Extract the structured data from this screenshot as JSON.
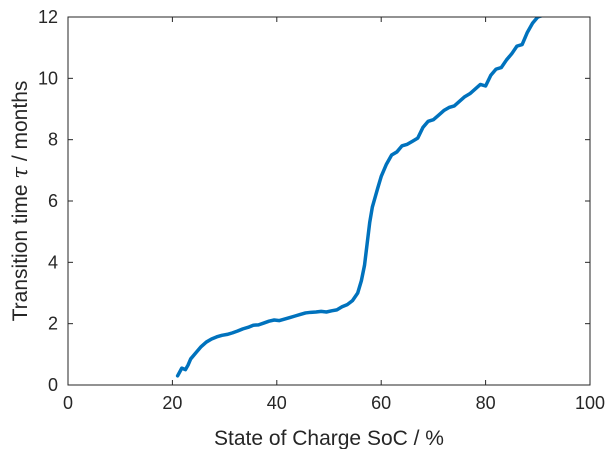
{
  "chart_data": {
    "type": "line",
    "title": "",
    "xlabel": "State of Charge SoC  /  %",
    "ylabel_parts": {
      "before": "Transition time ",
      "symbol": "τ",
      "after": "  /  months"
    },
    "xlim": [
      0,
      100
    ],
    "ylim": [
      0,
      12
    ],
    "xticks": [
      0,
      20,
      40,
      60,
      80,
      100
    ],
    "yticks": [
      0,
      2,
      4,
      6,
      8,
      10,
      12
    ],
    "xtick_labels": [
      "0",
      "20",
      "40",
      "60",
      "80",
      "100"
    ],
    "ytick_labels": [
      "0",
      "2",
      "4",
      "6",
      "8",
      "10",
      "12"
    ],
    "grid": false,
    "box": true,
    "colors": {
      "line": "#0072BD",
      "axes": "#262626"
    },
    "series": [
      {
        "x": [
          21,
          21.8,
          22.5,
          23,
          23.5,
          24.5,
          25.5,
          26.5,
          27.5,
          28.5,
          29.5,
          30.5,
          31.5,
          32.5,
          33.5,
          34.5,
          35.5,
          36.5,
          37.5,
          38.5,
          39.5,
          40.5,
          41.5,
          42.5,
          43.5,
          44.5,
          45.5,
          46.5,
          47.5,
          48.5,
          49.5,
          50.5,
          51.5,
          52.5,
          53.5,
          54.5,
          55.5,
          56.2,
          56.8,
          57.3,
          57.8,
          58.3,
          58.8,
          59.3,
          60,
          61,
          62,
          63,
          64,
          65,
          66,
          67,
          68,
          69,
          70,
          71,
          72,
          73,
          74,
          75,
          76,
          77,
          78,
          79,
          80,
          81,
          82,
          83,
          84,
          85,
          86,
          87,
          88,
          89,
          90,
          91,
          92,
          93,
          94
        ],
        "y": [
          0.3,
          0.55,
          0.5,
          0.65,
          0.85,
          1.05,
          1.25,
          1.4,
          1.5,
          1.57,
          1.62,
          1.65,
          1.7,
          1.76,
          1.83,
          1.88,
          1.95,
          1.96,
          2.02,
          2.08,
          2.12,
          2.1,
          2.15,
          2.2,
          2.25,
          2.3,
          2.35,
          2.37,
          2.38,
          2.4,
          2.38,
          2.42,
          2.45,
          2.55,
          2.62,
          2.75,
          3.0,
          3.4,
          3.9,
          4.6,
          5.3,
          5.8,
          6.1,
          6.4,
          6.8,
          7.2,
          7.5,
          7.6,
          7.8,
          7.85,
          7.95,
          8.05,
          8.4,
          8.6,
          8.65,
          8.8,
          8.95,
          9.05,
          9.1,
          9.25,
          9.4,
          9.5,
          9.65,
          9.8,
          9.75,
          10.1,
          10.3,
          10.35,
          10.6,
          10.8,
          11.05,
          11.1,
          11.5,
          11.8,
          12.0,
          12.05,
          12.1,
          12.1,
          12.1
        ]
      }
    ]
  }
}
